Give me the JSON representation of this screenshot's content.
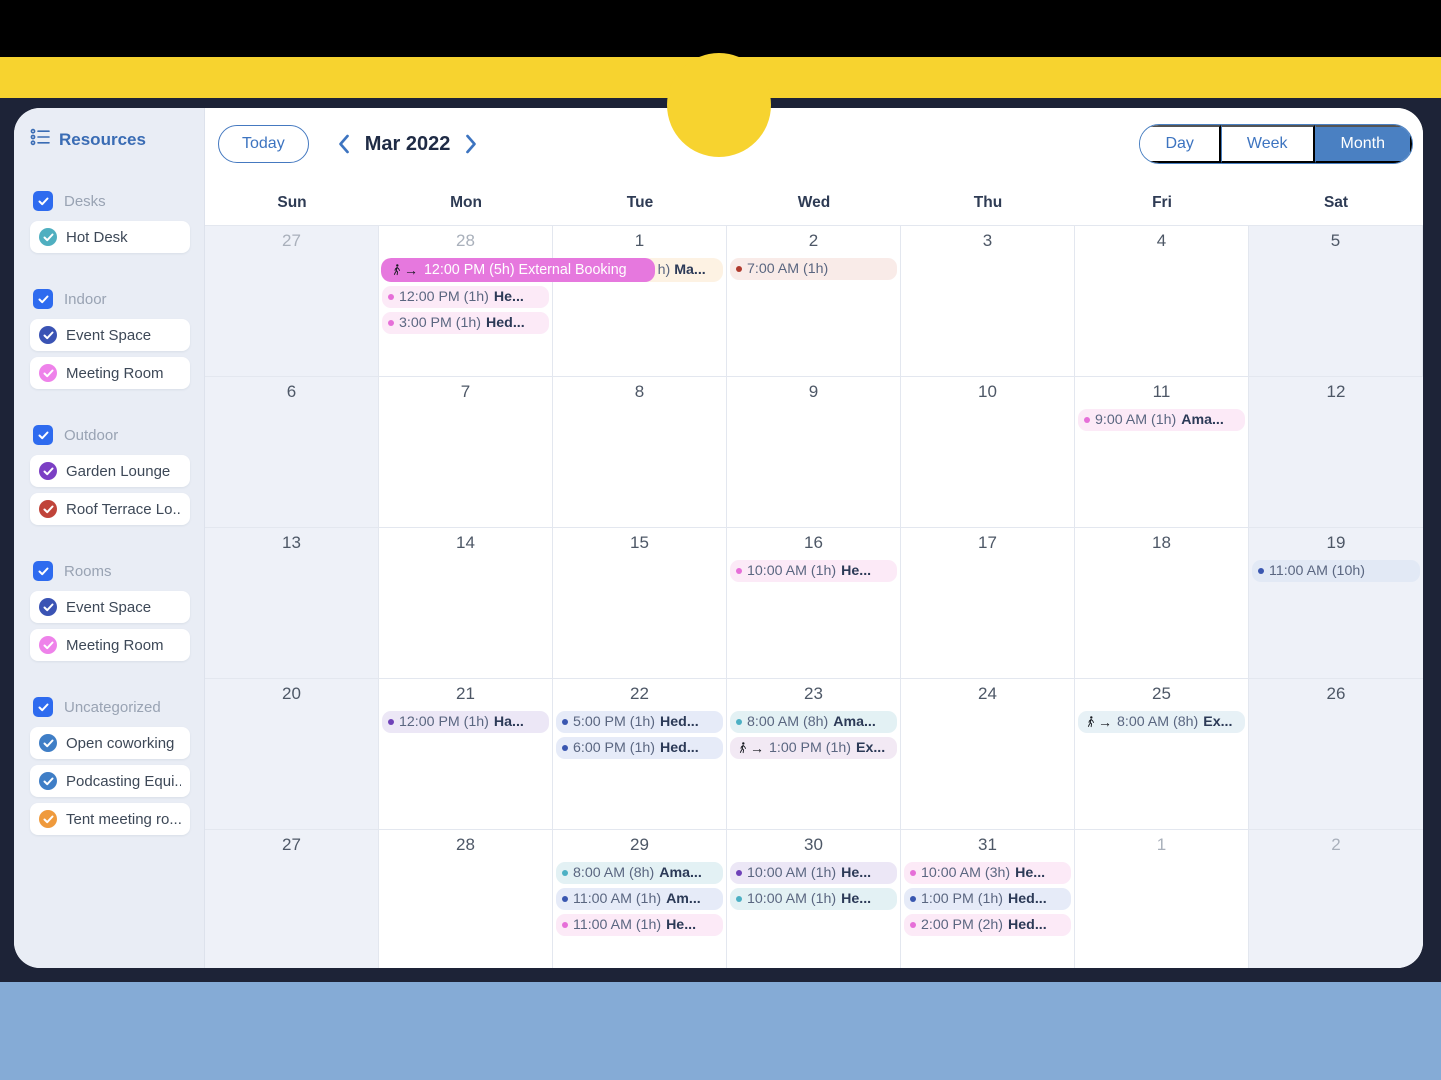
{
  "colors": {
    "yellow": "#f7d32f",
    "navy": "#1d2337",
    "bottom_blue": "#85abd6",
    "accent_blue": "#4a80c2",
    "link_blue": "#3d74c0",
    "checkbox_blue": "#2e6bef",
    "magenta_pill": "#e678de",
    "dot": {
      "pink": "#e66fd8",
      "purple": "#6f42b8",
      "blue": "#3a57b0",
      "teal": "#4cb0c4",
      "darkred": "#b03a2e"
    },
    "event_bg": {
      "pink": "#fceaf7",
      "purple": "#ece7f6",
      "blue": "#e6ebf8",
      "teal": "#e3f1f4",
      "peach": "#f9ebe8",
      "bluegray": "#e2e9f5",
      "pinkpale": "#f2e9f4",
      "tealpale": "#e7f1f6",
      "cream": "#fdf2e3"
    },
    "resource_icon": {
      "teal": "#4fafc0",
      "deepblue": "#3a53b4",
      "pinkviolet": "#ee82ea",
      "purple": "#7b3fc4",
      "red": "#c0443a",
      "steelblue": "#3f7ec6",
      "orange": "#ef9a3c"
    }
  },
  "sidebar": {
    "title": "Resources",
    "groups": [
      {
        "label": "Desks",
        "checked": true,
        "items": [
          {
            "label": "Hot Desk",
            "color": "teal"
          }
        ]
      },
      {
        "label": "Indoor",
        "checked": true,
        "items": [
          {
            "label": "Event Space",
            "color": "deepblue"
          },
          {
            "label": "Meeting Room",
            "color": "pinkviolet"
          }
        ]
      },
      {
        "label": "Outdoor",
        "checked": true,
        "items": [
          {
            "label": "Garden Lounge",
            "color": "purple"
          },
          {
            "label": "Roof Terrace Lo...",
            "color": "red"
          }
        ]
      },
      {
        "label": "Rooms",
        "checked": true,
        "items": [
          {
            "label": "Event Space",
            "color": "deepblue"
          },
          {
            "label": "Meeting Room",
            "color": "pinkviolet"
          }
        ]
      },
      {
        "label": "Uncategorized",
        "checked": true,
        "items": [
          {
            "label": "Open coworking",
            "color": "steelblue"
          },
          {
            "label": "Podcasting Equi...",
            "color": "steelblue"
          },
          {
            "label": "Tent meeting ro...",
            "color": "orange"
          }
        ]
      }
    ]
  },
  "toolbar": {
    "today_label": "Today",
    "title": "Mar 2022",
    "views": [
      "Day",
      "Week",
      "Month"
    ],
    "active_view": "Month"
  },
  "calendar": {
    "day_headers": [
      "Sun",
      "Mon",
      "Tue",
      "Wed",
      "Thu",
      "Fri",
      "Sat"
    ],
    "weeks": [
      {
        "overlay": {
          "start_col": 1,
          "span": 2,
          "pill_label": "12:00 PM (5h) External Booking",
          "tail_gray": "h)",
          "tail_dark": "Ma..."
        },
        "days": [
          {
            "num": "27",
            "other": true,
            "weekend": true,
            "events": []
          },
          {
            "num": "28",
            "other": true,
            "skip_first": true,
            "events": [
              {
                "dot": "pink",
                "time": "12:00 PM (1h)",
                "title": "He...",
                "bg": "pink"
              },
              {
                "dot": "pink",
                "time": "3:00 PM (1h)",
                "title": "Hed...",
                "bg": "pink"
              }
            ]
          },
          {
            "num": "1",
            "events": []
          },
          {
            "num": "2",
            "events": [
              {
                "dot": "darkred",
                "time": "7:00 AM (1h)",
                "title": "",
                "bg": "peach"
              }
            ]
          },
          {
            "num": "3",
            "events": []
          },
          {
            "num": "4",
            "events": []
          },
          {
            "num": "5",
            "weekend": true,
            "events": []
          }
        ]
      },
      {
        "days": [
          {
            "num": "6",
            "weekend": true,
            "events": []
          },
          {
            "num": "7",
            "events": []
          },
          {
            "num": "8",
            "events": []
          },
          {
            "num": "9",
            "events": []
          },
          {
            "num": "10",
            "events": []
          },
          {
            "num": "11",
            "events": [
              {
                "dot": "pink",
                "time": "9:00 AM (1h)",
                "title": "Ama...",
                "bg": "pink"
              }
            ]
          },
          {
            "num": "12",
            "weekend": true,
            "events": []
          }
        ]
      },
      {
        "days": [
          {
            "num": "13",
            "weekend": true,
            "events": []
          },
          {
            "num": "14",
            "events": []
          },
          {
            "num": "15",
            "events": []
          },
          {
            "num": "16",
            "events": [
              {
                "dot": "pink",
                "time": "10:00 AM (1h)",
                "title": "He...",
                "bg": "pink"
              }
            ]
          },
          {
            "num": "17",
            "events": []
          },
          {
            "num": "18",
            "events": []
          },
          {
            "num": "19",
            "weekend": true,
            "events": [
              {
                "dot": "blue",
                "time": "11:00 AM (10h)",
                "title": "",
                "bg": "bluegray"
              }
            ]
          }
        ]
      },
      {
        "days": [
          {
            "num": "20",
            "weekend": true,
            "events": []
          },
          {
            "num": "21",
            "events": [
              {
                "dot": "purple",
                "time": "12:00 PM (1h)",
                "title": "Ha...",
                "bg": "purple"
              }
            ]
          },
          {
            "num": "22",
            "events": [
              {
                "dot": "blue",
                "time": "5:00 PM (1h)",
                "title": "Hed...",
                "bg": "blue"
              },
              {
                "dot": "blue",
                "time": "6:00 PM (1h)",
                "title": "Hed...",
                "bg": "blue"
              }
            ]
          },
          {
            "num": "23",
            "events": [
              {
                "dot": "teal",
                "time": "8:00 AM (8h)",
                "title": "Ama...",
                "bg": "teal"
              },
              {
                "icon": "walk",
                "time": "1:00 PM (1h)",
                "title": "Ex...",
                "bg": "pinkpale"
              }
            ]
          },
          {
            "num": "24",
            "events": []
          },
          {
            "num": "25",
            "events": [
              {
                "icon": "walk",
                "time": "8:00 AM (8h)",
                "title": "Ex...",
                "bg": "tealpale"
              }
            ]
          },
          {
            "num": "26",
            "weekend": true,
            "events": []
          }
        ]
      },
      {
        "days": [
          {
            "num": "27",
            "weekend": true,
            "events": []
          },
          {
            "num": "28",
            "events": []
          },
          {
            "num": "29",
            "events": [
              {
                "dot": "teal",
                "time": "8:00 AM (8h)",
                "title": "Ama...",
                "bg": "teal"
              },
              {
                "dot": "blue",
                "time": "11:00 AM (1h)",
                "title": "Am...",
                "bg": "blue"
              },
              {
                "dot": "pink",
                "time": "11:00 AM (1h)",
                "title": "He...",
                "bg": "pink"
              }
            ]
          },
          {
            "num": "30",
            "events": [
              {
                "dot": "purple",
                "time": "10:00 AM (1h)",
                "title": "He...",
                "bg": "purple"
              },
              {
                "dot": "teal",
                "time": "10:00 AM (1h)",
                "title": "He...",
                "bg": "teal"
              }
            ]
          },
          {
            "num": "31",
            "events": [
              {
                "dot": "pink",
                "time": "10:00 AM (3h)",
                "title": "He...",
                "bg": "pink"
              },
              {
                "dot": "blue",
                "time": "1:00 PM (1h)",
                "title": "Hed...",
                "bg": "blue"
              },
              {
                "dot": "pink",
                "time": "2:00 PM (2h)",
                "title": "Hed...",
                "bg": "pink"
              }
            ]
          },
          {
            "num": "1",
            "other": true,
            "events": []
          },
          {
            "num": "2",
            "other": true,
            "weekend": true,
            "events": []
          }
        ]
      }
    ]
  }
}
